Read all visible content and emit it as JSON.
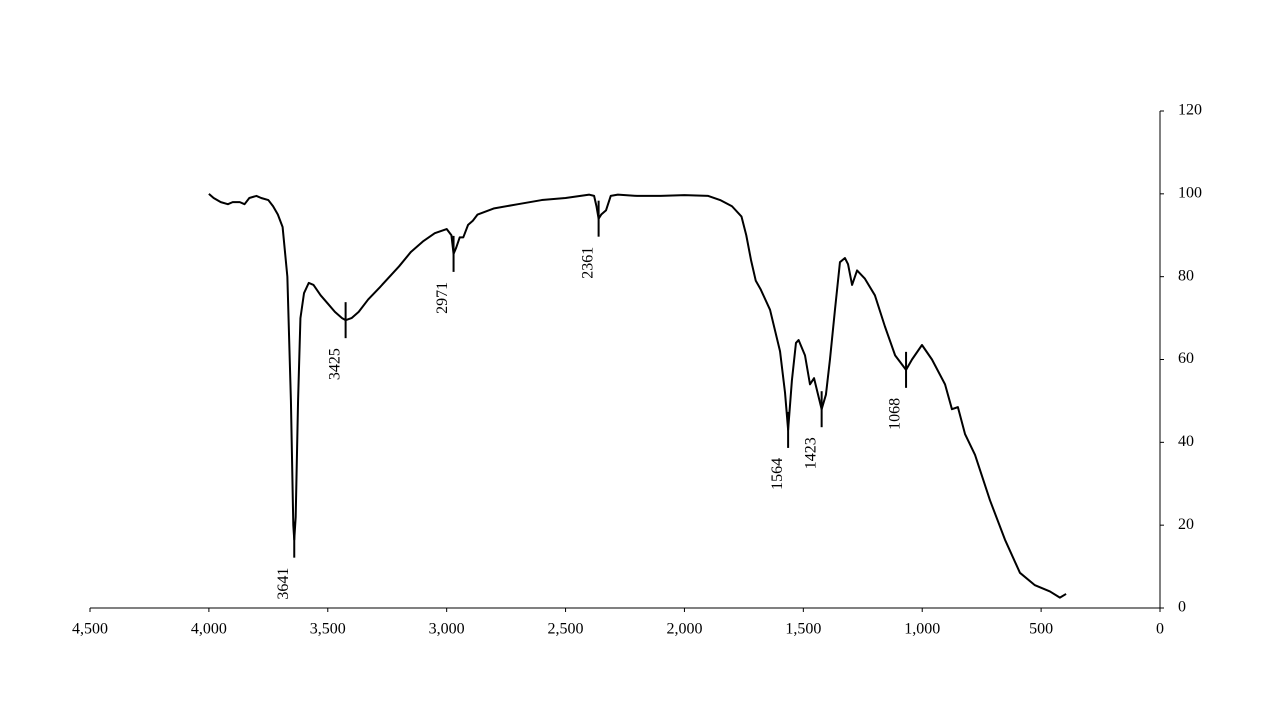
{
  "chart_data": {
    "type": "line",
    "x": [
      4000,
      3980,
      3950,
      3920,
      3900,
      3870,
      3850,
      3830,
      3800,
      3780,
      3750,
      3730,
      3710,
      3690,
      3670,
      3655,
      3645,
      3641,
      3635,
      3625,
      3615,
      3600,
      3580,
      3560,
      3530,
      3500,
      3470,
      3440,
      3425,
      3400,
      3370,
      3330,
      3280,
      3200,
      3150,
      3100,
      3050,
      3000,
      2980,
      2971,
      2960,
      2945,
      2930,
      2910,
      2890,
      2870,
      2800,
      2700,
      2600,
      2500,
      2400,
      2380,
      2370,
      2361,
      2350,
      2330,
      2310,
      2280,
      2200,
      2100,
      2000,
      1900,
      1850,
      1800,
      1760,
      1740,
      1720,
      1700,
      1680,
      1640,
      1598,
      1577,
      1564,
      1548,
      1531,
      1520,
      1493,
      1472,
      1455,
      1438,
      1423,
      1405,
      1388,
      1367,
      1346,
      1325,
      1312,
      1295,
      1274,
      1241,
      1199,
      1157,
      1114,
      1068,
      1043,
      1001,
      959,
      904,
      875,
      850,
      820,
      778,
      715,
      652,
      589,
      526,
      463,
      421,
      395
    ],
    "values": [
      100,
      99,
      98,
      97.5,
      98,
      98,
      97.5,
      99,
      99.5,
      99,
      98.5,
      97,
      95,
      92,
      80,
      50,
      20,
      16.5,
      22,
      50,
      70,
      76,
      78.5,
      78,
      75.5,
      73.5,
      71.5,
      70,
      69.5,
      70,
      71.5,
      74.5,
      77.5,
      82.5,
      86,
      88.5,
      90.5,
      91.5,
      90,
      85.5,
      87,
      89.5,
      89.5,
      92.5,
      93.5,
      95,
      96.5,
      97.5,
      98.5,
      99,
      99.8,
      99.5,
      97,
      94,
      95,
      96,
      99.5,
      99.8,
      99.5,
      99.5,
      99.7,
      99.5,
      98.5,
      97,
      94.5,
      90,
      84,
      79,
      77,
      72,
      62,
      52,
      43,
      55,
      64,
      64.7,
      61,
      54,
      55.5,
      51.5,
      48,
      51.5,
      60,
      72,
      83.5,
      84.5,
      83,
      78,
      81.5,
      79.5,
      75.5,
      68,
      61,
      57.5,
      60,
      63.5,
      60,
      54,
      48,
      48.5,
      42,
      37,
      26,
      16.5,
      8.5,
      5.5,
      4,
      2.5,
      3.4
    ],
    "color": "#000000",
    "peak_labels": [
      3641,
      3425,
      2971,
      2361,
      1564,
      1423,
      1068
    ],
    "xlim": [
      4500,
      0
    ],
    "xticks": [
      {
        "value": 4500,
        "label": "4,500"
      },
      {
        "value": 4000,
        "label": "4,000"
      },
      {
        "value": 3500,
        "label": "3,500"
      },
      {
        "value": 3000,
        "label": "3,000"
      },
      {
        "value": 2500,
        "label": "2,500"
      },
      {
        "value": 2000,
        "label": "2,000"
      },
      {
        "value": 1500,
        "label": "1,500"
      },
      {
        "value": 1000,
        "label": "1,000"
      },
      500,
      0
    ],
    "ylim": [
      0,
      120
    ],
    "yticks": [
      0,
      20,
      40,
      60,
      80,
      100,
      120
    ]
  }
}
